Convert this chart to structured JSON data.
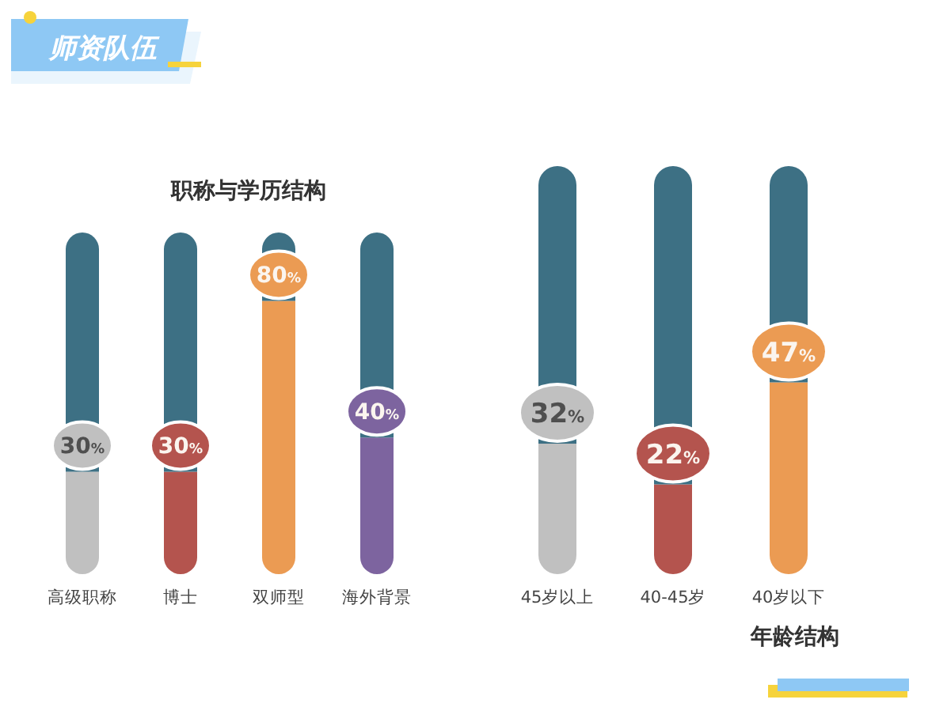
{
  "chart_data": [
    {
      "type": "other",
      "title": "师资队伍"
    },
    {
      "type": "bar",
      "title": "职称与学历结构",
      "categories": [
        "高级职称",
        "博士",
        "双师型",
        "海外背景"
      ],
      "stacked": true,
      "ylim": [
        0,
        100
      ],
      "tick_labels": "x",
      "series": [
        {
          "colors": [
            "#c0c0c0",
            "#b4544e",
            "#eb9b53",
            "#7d649f"
          ],
          "values": [
            30,
            30,
            80,
            40
          ],
          "value_labels": [
            "30%",
            "30%",
            "80%",
            "40%"
          ]
        },
        {
          "color": "#3d7084",
          "values": [
            70,
            70,
            20,
            60
          ]
        }
      ]
    },
    {
      "type": "bar",
      "title": "年龄结构",
      "categories": [
        "45岁以上",
        "40-45岁",
        "40岁以下"
      ],
      "stacked": true,
      "ylim": [
        0,
        100
      ],
      "tick_labels": "x",
      "series": [
        {
          "colors": [
            "#c0c0c0",
            "#b4544e",
            "#eb9b53"
          ],
          "values": [
            32,
            22,
            47
          ],
          "value_labels": [
            "32%",
            "22%",
            "47%"
          ]
        },
        {
          "color": "#3d7084",
          "values": [
            68,
            78,
            53
          ]
        }
      ]
    }
  ]
}
